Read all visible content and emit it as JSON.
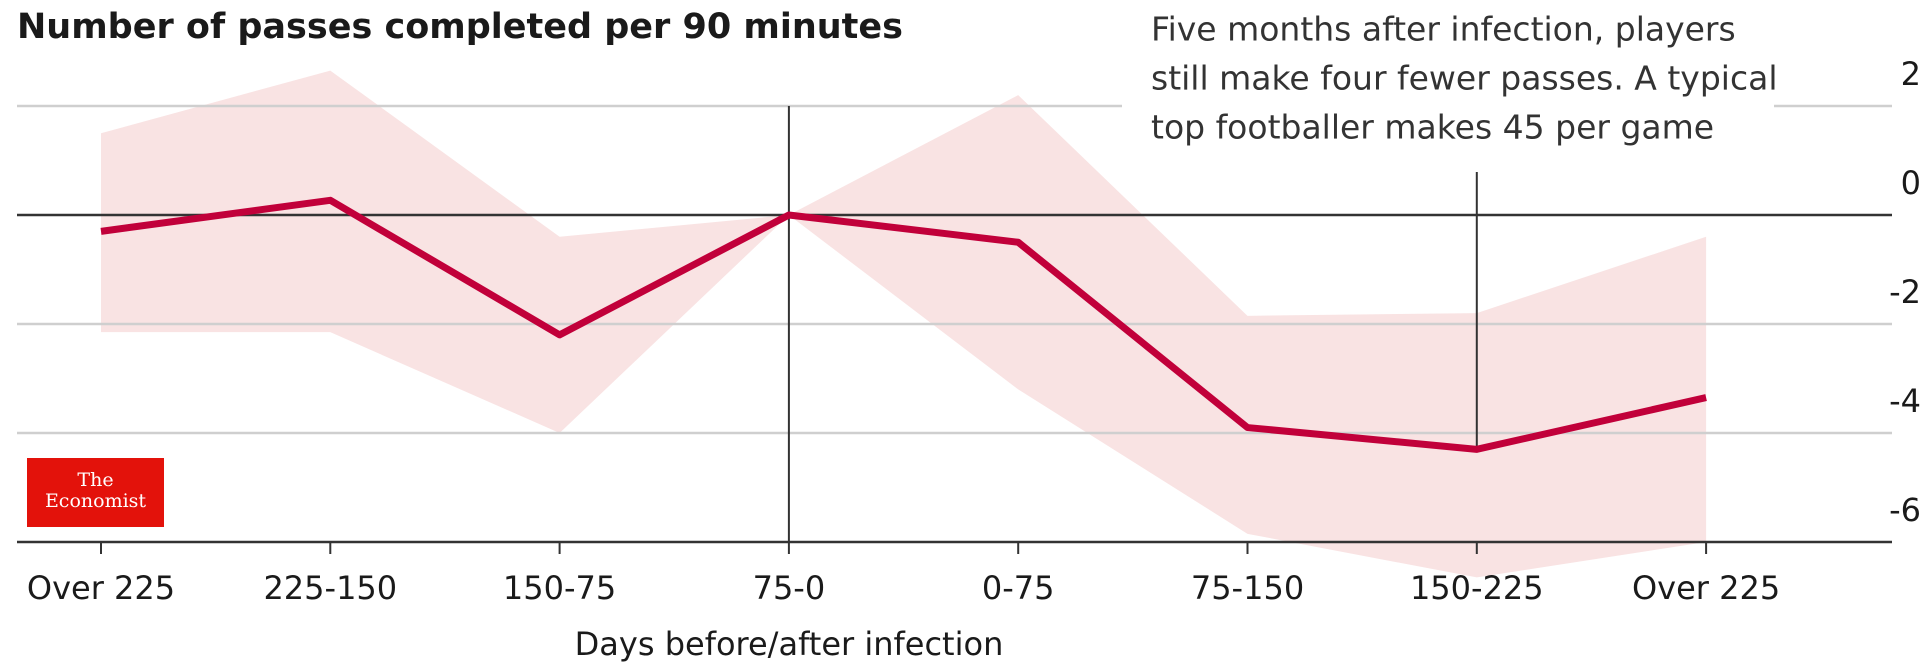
{
  "chart_data": {
    "type": "line",
    "title": "Number of passes completed per 90 minutes",
    "x_label": "Days before/after infection",
    "annotation": [
      "Five months after infection, players",
      "still make four fewer passes. A typical",
      "top footballer makes 45 per game"
    ],
    "logo": [
      "The",
      "Economist"
    ],
    "categories": [
      "Over 225",
      "225-150",
      "150-75",
      "75-0",
      "0-75",
      "75-150",
      "150-225",
      "Over 225"
    ],
    "series": [
      {
        "color": "#c1003a",
        "values": [
          -0.3,
          0.27,
          -2.2,
          0,
          -0.5,
          -3.9,
          -4.3,
          -3.35
        ]
      }
    ],
    "band": {
      "color": "#f9e3e3",
      "upper": [
        1.5,
        2.65,
        -0.4,
        0,
        2.2,
        -1.85,
        -1.8,
        -0.4
      ],
      "lower": [
        -2.15,
        -2.15,
        -4.0,
        0,
        -3.2,
        -5.85,
        -6.65,
        -6.0
      ]
    },
    "ylim": [
      -6,
      2
    ],
    "yticks": [
      2,
      0,
      -2,
      -4,
      -6
    ],
    "grid": true
  }
}
